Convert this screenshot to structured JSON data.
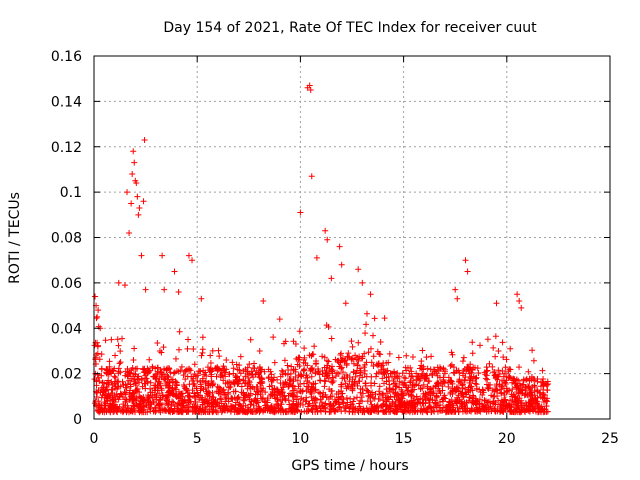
{
  "chart_data": {
    "type": "scatter",
    "title": "Day 154 of 2021, Rate Of TEC Index for receiver cuut",
    "xlabel": "GPS time / hours",
    "ylabel": "ROTI / TECUs",
    "xlim": [
      0,
      25
    ],
    "ylim": [
      0,
      0.16
    ],
    "xticks": [
      "0",
      "5",
      "10",
      "15",
      "20",
      "25"
    ],
    "yticks": [
      "0",
      "0.02",
      "0.04",
      "0.06",
      "0.08",
      "0.1",
      "0.12",
      "0.14",
      "0.16"
    ],
    "grid": true,
    "marker": "+",
    "color": "#ff0000",
    "series": [
      {
        "x": [
          0.05,
          0.1,
          0.15,
          0.2,
          0.3,
          1.2,
          1.5,
          1.6,
          1.7,
          1.8,
          1.85,
          1.9,
          1.95,
          2.0,
          2.05,
          2.1,
          2.15,
          2.2,
          2.3,
          2.4,
          2.45,
          2.5,
          3.3,
          3.4,
          3.9,
          4.1,
          4.6,
          4.75,
          5.2,
          8.2,
          9.0,
          10.0,
          10.35,
          10.45,
          10.5,
          10.55,
          10.8,
          11.2,
          11.3,
          11.5,
          11.9,
          12.0,
          12.2,
          12.8,
          13.0,
          13.4,
          17.5,
          17.6,
          18.0,
          18.1,
          19.5,
          20.5,
          20.6,
          20.7
        ],
        "y": [
          0.054,
          0.05,
          0.045,
          0.048,
          0.04,
          0.06,
          0.059,
          0.1,
          0.082,
          0.095,
          0.108,
          0.118,
          0.113,
          0.105,
          0.104,
          0.098,
          0.09,
          0.093,
          0.072,
          0.096,
          0.123,
          0.057,
          0.072,
          0.057,
          0.065,
          0.056,
          0.072,
          0.07,
          0.053,
          0.052,
          0.044,
          0.091,
          0.146,
          0.147,
          0.145,
          0.107,
          0.071,
          0.083,
          0.079,
          0.062,
          0.076,
          0.068,
          0.051,
          0.066,
          0.06,
          0.055,
          0.057,
          0.053,
          0.07,
          0.065,
          0.051,
          0.055,
          0.052,
          0.049
        ]
      }
    ]
  }
}
